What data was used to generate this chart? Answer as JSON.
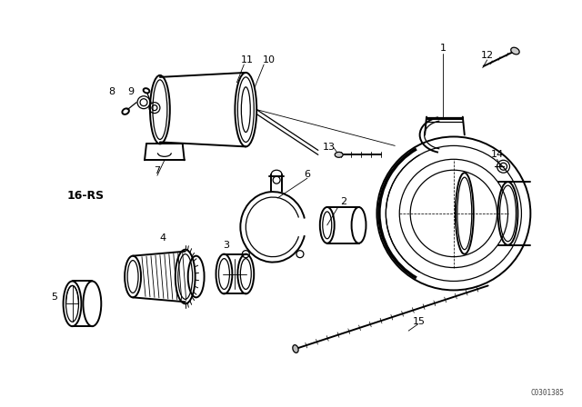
{
  "bg_color": "#ffffff",
  "line_color": "#000000",
  "watermark": "C0301385",
  "label_16RS": "16-RS",
  "figsize": [
    6.4,
    4.48
  ],
  "dpi": 100
}
